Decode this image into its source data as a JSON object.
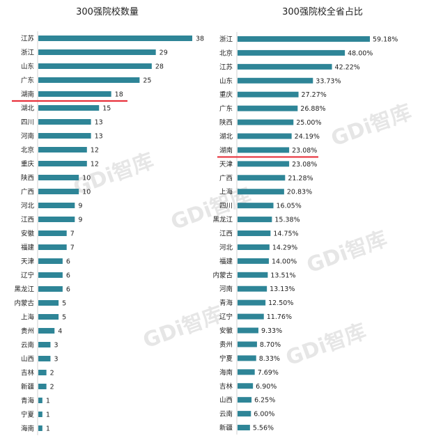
{
  "colors": {
    "bar": "#2e8597",
    "highlight": "#e8323c",
    "axis": "#d0d0d0"
  },
  "watermark": "GDi智库",
  "chart_data": [
    {
      "type": "bar",
      "orientation": "horizontal",
      "title": "300强院校数量",
      "categories": [
        "江苏",
        "浙江",
        "山东",
        "广东",
        "湖南",
        "湖北",
        "四川",
        "河南",
        "北京",
        "重庆",
        "陕西",
        "广西",
        "河北",
        "江西",
        "安徽",
        "福建",
        "天津",
        "辽宁",
        "黑龙江",
        "内蒙古",
        "上海",
        "贵州",
        "云南",
        "山西",
        "吉林",
        "新疆",
        "青海",
        "宁夏",
        "海南"
      ],
      "values": [
        38,
        29,
        28,
        25,
        18,
        15,
        13,
        13,
        12,
        12,
        10,
        10,
        9,
        9,
        7,
        7,
        6,
        6,
        6,
        5,
        5,
        4,
        3,
        3,
        2,
        2,
        1,
        1,
        1
      ],
      "value_labels": [
        "38",
        "29",
        "28",
        "25",
        "18",
        "15",
        "13",
        "13",
        "12",
        "12",
        "10",
        "10",
        "9",
        "9",
        "7",
        "7",
        "6",
        "6",
        "6",
        "5",
        "5",
        "4",
        "3",
        "3",
        "2",
        "2",
        "1",
        "1",
        "1"
      ],
      "highlight": "湖南",
      "xlim": [
        0,
        38
      ]
    },
    {
      "type": "bar",
      "orientation": "horizontal",
      "title": "300强院校全省占比",
      "categories": [
        "浙江",
        "北京",
        "江苏",
        "山东",
        "重庆",
        "广东",
        "陕西",
        "湖北",
        "湖南",
        "天津",
        "广西",
        "上海",
        "四川",
        "黑龙江",
        "江西",
        "河北",
        "福建",
        "内蒙古",
        "河南",
        "青海",
        "辽宁",
        "安徽",
        "贵州",
        "宁夏",
        "海南",
        "吉林",
        "山西",
        "云南",
        "新疆"
      ],
      "values": [
        59.18,
        48.0,
        42.22,
        33.73,
        27.27,
        26.88,
        25.0,
        24.19,
        23.08,
        23.08,
        21.28,
        20.83,
        16.05,
        15.38,
        14.75,
        14.29,
        14.0,
        13.51,
        13.13,
        12.5,
        11.76,
        9.33,
        8.7,
        8.33,
        7.69,
        6.9,
        6.25,
        6.0,
        5.56
      ],
      "value_labels": [
        "59.18%",
        "48.00%",
        "42.22%",
        "33.73%",
        "27.27%",
        "26.88%",
        "25.00%",
        "24.19%",
        "23.08%",
        "23.08%",
        "21.28%",
        "20.83%",
        "16.05%",
        "15.38%",
        "14.75%",
        "14.29%",
        "14.00%",
        "13.51%",
        "13.13%",
        "12.50%",
        "11.76%",
        "9.33%",
        "8.70%",
        "8.33%",
        "7.69%",
        "6.90%",
        "6.25%",
        "6.00%",
        "5.56%"
      ],
      "highlight": "湖南",
      "xlim": [
        0,
        59.18
      ]
    }
  ]
}
